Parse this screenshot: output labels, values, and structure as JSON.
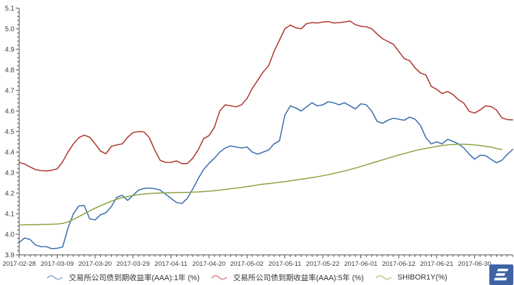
{
  "chart_data": {
    "type": "line",
    "title": "",
    "background": "#ffffff",
    "axis_color": "#4a4a4a",
    "grid": false,
    "legend_position": "bottom",
    "y_axis": {
      "min": 3.9,
      "max": 5.1,
      "major_step": 0.1,
      "minor_step": 0.02,
      "labels": [
        "3.9",
        "4.0",
        "4.1",
        "4.2",
        "4.3",
        "4.4",
        "4.5",
        "4.6",
        "4.7",
        "4.8",
        "4.9",
        "5.0",
        "5.1"
      ]
    },
    "x_axis": {
      "labels": [
        "2017-02-28",
        "2017-03-09",
        "2017-03-20",
        "2017-03-29",
        "2017-04-11",
        "2017-04-20",
        "2017-05-02",
        "2017-05-11",
        "2017-05-22",
        "2017-06-01",
        "2017-06-12",
        "2017-06-21",
        "2017-06-30"
      ],
      "points_per_label": 7
    },
    "series": [
      {
        "name": "交易所公司债到期收益率(AAA):1年 (%)",
        "color": "#3d6fae",
        "values": [
          3.96,
          3.982,
          3.975,
          3.948,
          3.94,
          3.94,
          3.93,
          3.932,
          3.938,
          4.03,
          4.1,
          4.138,
          4.14,
          4.075,
          4.07,
          4.095,
          4.105,
          4.135,
          4.18,
          4.19,
          4.165,
          4.19,
          4.215,
          4.223,
          4.225,
          4.222,
          4.215,
          4.195,
          4.175,
          4.155,
          4.15,
          4.175,
          4.22,
          4.27,
          4.315,
          4.345,
          4.37,
          4.4,
          4.42,
          4.43,
          4.425,
          4.42,
          4.425,
          4.4,
          4.39,
          4.4,
          4.41,
          4.44,
          4.455,
          4.58,
          4.625,
          4.615,
          4.6,
          4.62,
          4.64,
          4.625,
          4.63,
          4.645,
          4.64,
          4.63,
          4.64,
          4.625,
          4.61,
          4.635,
          4.63,
          4.6,
          4.55,
          4.54,
          4.555,
          4.565,
          4.56,
          4.555,
          4.57,
          4.56,
          4.53,
          4.47,
          4.44,
          4.45,
          4.44,
          4.462,
          4.452,
          4.44,
          4.42,
          4.39,
          4.365,
          4.385,
          4.383,
          4.365,
          4.348,
          4.36,
          4.388,
          4.413
        ]
      },
      {
        "name": "交易所公司债到期收益率(AAA):5年 (%)",
        "color": "#b03b33",
        "values": [
          4.35,
          4.342,
          4.328,
          4.315,
          4.31,
          4.308,
          4.312,
          4.318,
          4.352,
          4.4,
          4.44,
          4.47,
          4.483,
          4.472,
          4.44,
          4.405,
          4.392,
          4.428,
          4.435,
          4.44,
          4.472,
          4.495,
          4.5,
          4.498,
          4.47,
          4.41,
          4.36,
          4.35,
          4.35,
          4.357,
          4.344,
          4.344,
          4.37,
          4.41,
          4.465,
          4.48,
          4.52,
          4.6,
          4.63,
          4.625,
          4.62,
          4.63,
          4.66,
          4.71,
          4.75,
          4.79,
          4.82,
          4.89,
          4.945,
          5.0,
          5.018,
          5.005,
          5.0,
          5.025,
          5.03,
          5.028,
          5.033,
          5.035,
          5.028,
          5.03,
          5.033,
          5.038,
          5.02,
          5.012,
          5.01,
          5.0,
          4.975,
          4.952,
          4.938,
          4.925,
          4.89,
          4.855,
          4.845,
          4.81,
          4.785,
          4.775,
          4.72,
          4.705,
          4.685,
          4.695,
          4.68,
          4.655,
          4.638,
          4.598,
          4.59,
          4.605,
          4.625,
          4.622,
          4.605,
          4.567,
          4.558,
          4.557
        ]
      },
      {
        "name": "SHIBOR1Y(%)",
        "color": "#8ca647",
        "values": [
          4.045,
          4.046,
          4.047,
          4.047,
          4.048,
          4.048,
          4.049,
          4.05,
          4.053,
          4.06,
          4.072,
          4.086,
          4.1,
          4.114,
          4.127,
          4.139,
          4.15,
          4.161,
          4.171,
          4.178,
          4.184,
          4.189,
          4.193,
          4.196,
          4.198,
          4.2,
          4.201,
          4.202,
          4.202,
          4.203,
          4.203,
          4.204,
          4.205,
          4.206,
          4.208,
          4.21,
          4.212,
          4.215,
          4.218,
          4.222,
          4.225,
          4.228,
          4.232,
          4.236,
          4.24,
          4.244,
          4.247,
          4.25,
          4.253,
          4.256,
          4.26,
          4.264,
          4.268,
          4.272,
          4.276,
          4.28,
          4.285,
          4.29,
          4.296,
          4.302,
          4.308,
          4.315,
          4.322,
          4.33,
          4.338,
          4.346,
          4.354,
          4.362,
          4.37,
          4.378,
          4.386,
          4.393,
          4.4,
          4.407,
          4.413,
          4.418,
          4.423,
          4.428,
          4.432,
          4.435,
          4.437,
          4.438,
          4.438,
          4.437,
          4.435,
          4.432,
          4.428,
          4.424,
          4.418,
          4.413,
          null,
          null
        ]
      }
    ]
  }
}
